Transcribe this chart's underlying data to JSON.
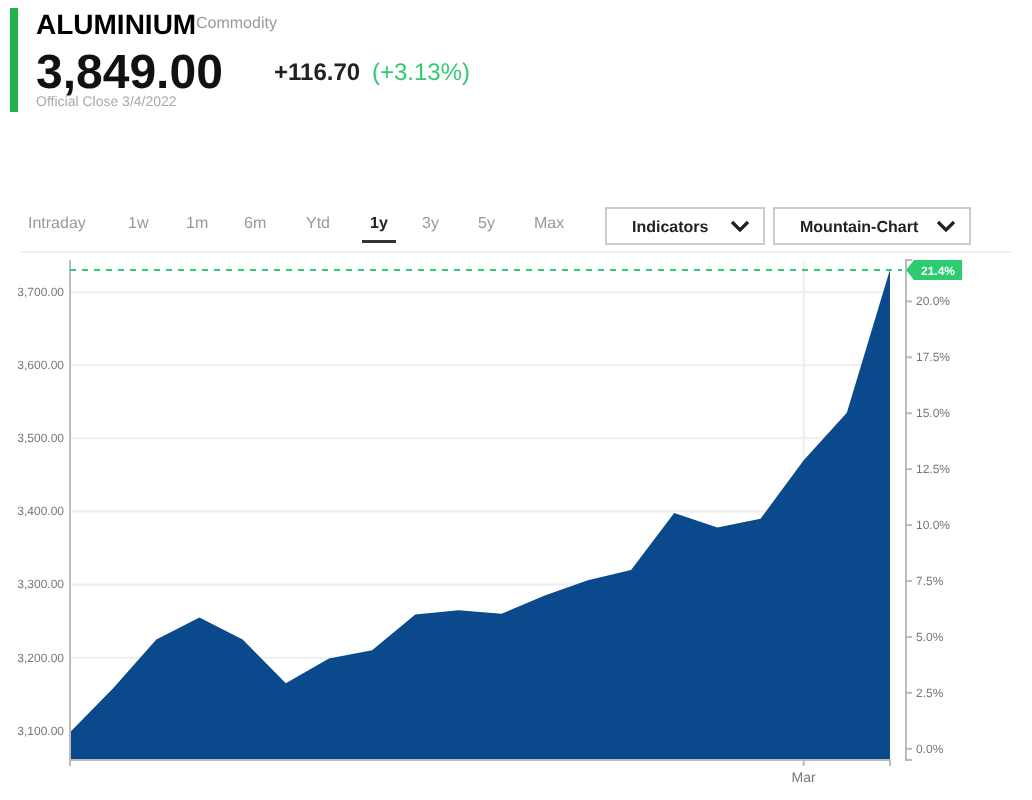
{
  "chart_data": {
    "type": "area",
    "title": "ALUMINIUM",
    "subtitle": "Commodity",
    "annotations": [
      "3,849.00",
      "+116.70",
      "(+3.13%)",
      "Official Close 3/4/2022",
      "Intraday",
      "1w",
      "1m",
      "6m",
      "Ytd",
      "1y",
      "3y",
      "5y",
      "Max",
      "Indicators",
      "Mountain-Chart"
    ],
    "categories": [
      null,
      null,
      null,
      null,
      null,
      null,
      null,
      null,
      null,
      null,
      null,
      null,
      null,
      null,
      null,
      null,
      null,
      "Mar",
      null,
      null
    ],
    "series": [
      {
        "color": "#0a4a8c",
        "values": [
          3098,
          3158,
          3225,
          3255,
          3225,
          3165,
          3199,
          3210,
          3259,
          3265,
          3260,
          3285,
          3306,
          3320,
          3398,
          3378,
          3390,
          3470,
          3535,
          3731
        ]
      }
    ],
    "ylim": [
      3060,
      3744
    ],
    "yticks": [
      {
        "value": 3100,
        "label": "3,100.00"
      },
      {
        "value": 3200,
        "label": "3,200.00"
      },
      {
        "value": 3300,
        "label": "3,300.00"
      },
      {
        "value": 3400,
        "label": "3,400.00"
      },
      {
        "value": 3500,
        "label": "3,500.00"
      },
      {
        "value": 3600,
        "label": "3,600.00"
      },
      {
        "value": 3700,
        "label": "3,700.00"
      }
    ],
    "y2lim": [
      -0.5,
      21.85
    ],
    "y2ticks": [
      {
        "value": 0,
        "label": "0.0%"
      },
      {
        "value": 2.5,
        "label": "2.5%"
      },
      {
        "value": 5,
        "label": "5.0%"
      },
      {
        "value": 7.5,
        "label": "7.5%"
      },
      {
        "value": 10,
        "label": "10.0%"
      },
      {
        "value": 12.5,
        "label": "12.5%"
      },
      {
        "value": 15,
        "label": "15.0%"
      },
      {
        "value": 17.5,
        "label": "17.5%"
      },
      {
        "value": 20,
        "label": "20.0%"
      }
    ],
    "ref_lines": [
      {
        "axis": "y2",
        "value": 21.4,
        "label": "21.4%",
        "color": "#2ecc71",
        "line_style": "dashed"
      }
    ],
    "grid": true
  }
}
